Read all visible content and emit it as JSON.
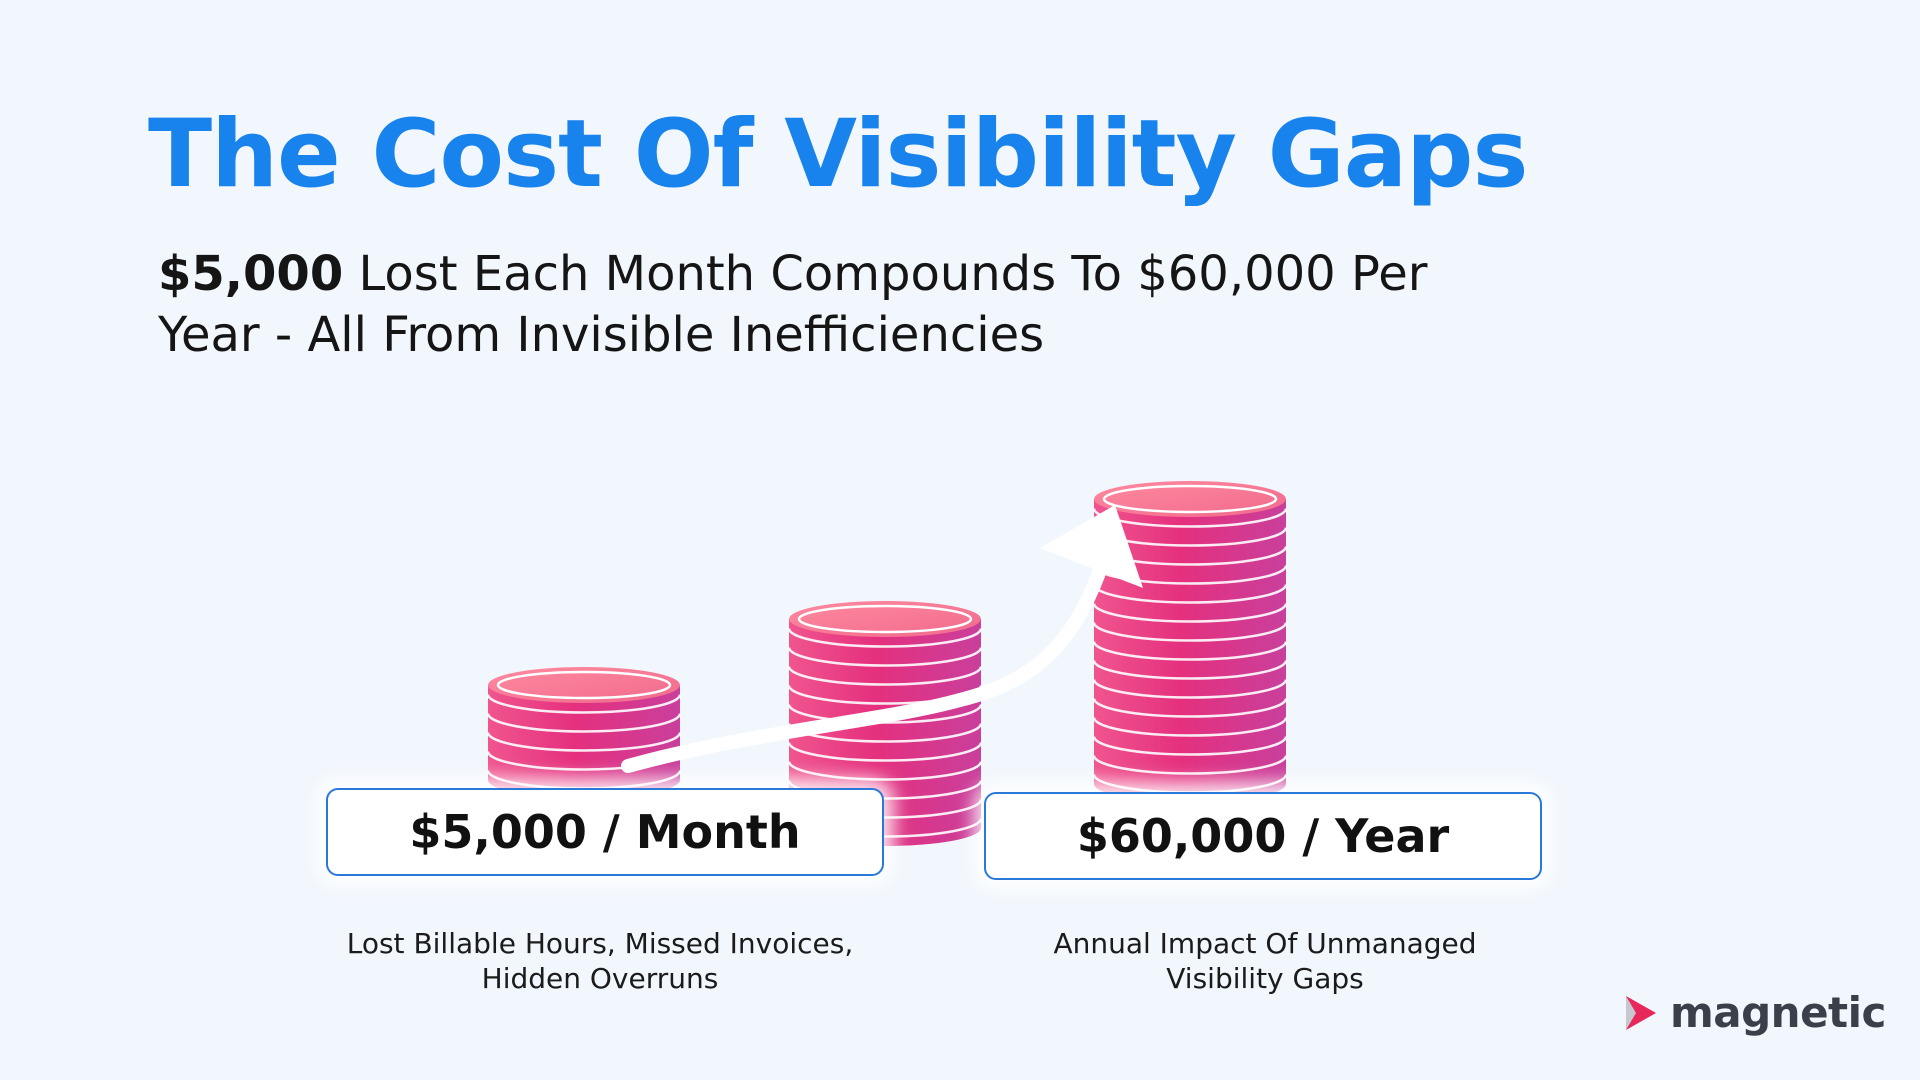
{
  "title": "The Cost Of Visibility Gaps",
  "subtitle": {
    "bold": "$5,000",
    "rest": " Lost Each Month Compounds To $60,000 Per Year - All From Invisible Inefficiencies"
  },
  "cards": [
    {
      "amount": "$5,000 / Month",
      "caption": "Lost Billable Hours, Missed Invoices, Hidden Overruns"
    },
    {
      "amount": "$60,000 / Year",
      "caption": "Annual Impact Of Unmanaged Visibility Gaps"
    }
  ],
  "coin_stacks": [
    {
      "coins": 5
    },
    {
      "coins": 11
    },
    {
      "coins": 15
    }
  ],
  "logo": {
    "text": "magnetic",
    "icon": "play-arrow-icon"
  },
  "colors": {
    "title": "#1883ec",
    "coin_pink": "#e83a86",
    "coin_top": "#f57090",
    "box_border": "#2a78d8"
  }
}
